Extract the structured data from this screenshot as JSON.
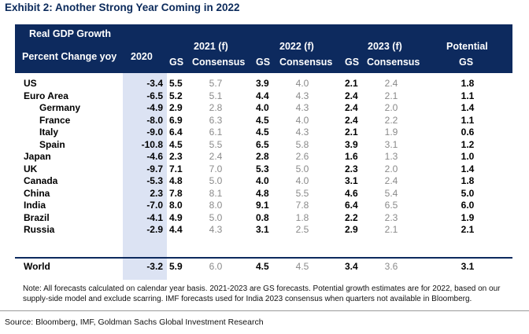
{
  "title": "Exhibit 2: Another Strong Year Coming in 2022",
  "header": {
    "group_label": "Real GDP Growth",
    "row_label": "Percent Change yoy",
    "col_2020": "2020",
    "y2021": "2021 (f)",
    "y2022": "2022 (f)",
    "y2023": "2023 (f)",
    "potential": "Potential",
    "gs": "GS",
    "consensus": "Consensus"
  },
  "rows": [
    {
      "name": "US",
      "indent": false,
      "v2020": "-3.4",
      "gs21": "5.5",
      "c21": "5.7",
      "gs22": "3.9",
      "c22": "4.0",
      "gs23": "2.1",
      "c23": "2.4",
      "pot": "1.8"
    },
    {
      "name": "Euro Area",
      "indent": false,
      "v2020": "-6.5",
      "gs21": "5.2",
      "c21": "5.1",
      "gs22": "4.4",
      "c22": "4.3",
      "gs23": "2.4",
      "c23": "2.1",
      "pot": "1.1"
    },
    {
      "name": "Germany",
      "indent": true,
      "v2020": "-4.9",
      "gs21": "2.9",
      "c21": "2.8",
      "gs22": "4.0",
      "c22": "4.3",
      "gs23": "2.4",
      "c23": "2.0",
      "pot": "1.4"
    },
    {
      "name": "France",
      "indent": true,
      "v2020": "-8.0",
      "gs21": "6.9",
      "c21": "6.3",
      "gs22": "4.5",
      "c22": "4.0",
      "gs23": "2.4",
      "c23": "2.2",
      "pot": "1.1"
    },
    {
      "name": "Italy",
      "indent": true,
      "v2020": "-9.0",
      "gs21": "6.4",
      "c21": "6.1",
      "gs22": "4.5",
      "c22": "4.3",
      "gs23": "2.1",
      "c23": "1.9",
      "pot": "0.6"
    },
    {
      "name": "Spain",
      "indent": true,
      "v2020": "-10.8",
      "gs21": "4.5",
      "c21": "5.5",
      "gs22": "6.5",
      "c22": "5.8",
      "gs23": "3.9",
      "c23": "3.1",
      "pot": "1.2"
    },
    {
      "name": "Japan",
      "indent": false,
      "v2020": "-4.6",
      "gs21": "2.3",
      "c21": "2.4",
      "gs22": "2.8",
      "c22": "2.6",
      "gs23": "1.6",
      "c23": "1.3",
      "pot": "1.0"
    },
    {
      "name": "UK",
      "indent": false,
      "v2020": "-9.7",
      "gs21": "7.1",
      "c21": "7.0",
      "gs22": "5.3",
      "c22": "5.0",
      "gs23": "2.3",
      "c23": "2.0",
      "pot": "1.4"
    },
    {
      "name": "Canada",
      "indent": false,
      "v2020": "-5.3",
      "gs21": "4.8",
      "c21": "5.0",
      "gs22": "4.0",
      "c22": "4.0",
      "gs23": "3.1",
      "c23": "2.4",
      "pot": "1.8"
    },
    {
      "name": "China",
      "indent": false,
      "v2020": "2.3",
      "gs21": "7.8",
      "c21": "8.1",
      "gs22": "4.8",
      "c22": "5.5",
      "gs23": "4.6",
      "c23": "5.4",
      "pot": "5.0"
    },
    {
      "name": "India",
      "indent": false,
      "v2020": "-7.0",
      "gs21": "8.0",
      "c21": "8.0",
      "gs22": "9.1",
      "c22": "7.8",
      "gs23": "6.4",
      "c23": "6.5",
      "pot": "6.0"
    },
    {
      "name": "Brazil",
      "indent": false,
      "v2020": "-4.1",
      "gs21": "4.9",
      "c21": "5.0",
      "gs22": "0.8",
      "c22": "1.8",
      "gs23": "2.2",
      "c23": "2.3",
      "pot": "1.9"
    },
    {
      "name": "Russia",
      "indent": false,
      "v2020": "-2.9",
      "gs21": "4.4",
      "c21": "4.3",
      "gs22": "3.1",
      "c22": "2.5",
      "gs23": "2.9",
      "c23": "2.1",
      "pot": "2.1"
    },
    {
      "name": "World",
      "indent": false,
      "v2020": "-3.2",
      "gs21": "5.9",
      "c21": "6.0",
      "gs22": "4.5",
      "c22": "4.5",
      "gs23": "3.4",
      "c23": "3.6",
      "pot": "3.1"
    }
  ],
  "note": "Note: All forecasts calculated on calendar year basis. 2021-2023 are GS forecasts. Potential growth estimates are for 2022, based on our supply-side model and exclude scarring. IMF forecasts used for India 2023 consensus when quarters not available in Bloomberg.",
  "source": "Source: Bloomberg, IMF, Goldman Sachs Global Investment Research",
  "colors": {
    "header_bg": "#0d2a5e",
    "shade_2020": "#dce3f3",
    "consensus_text": "#8a8a8a",
    "title": "#0b2a5b"
  }
}
